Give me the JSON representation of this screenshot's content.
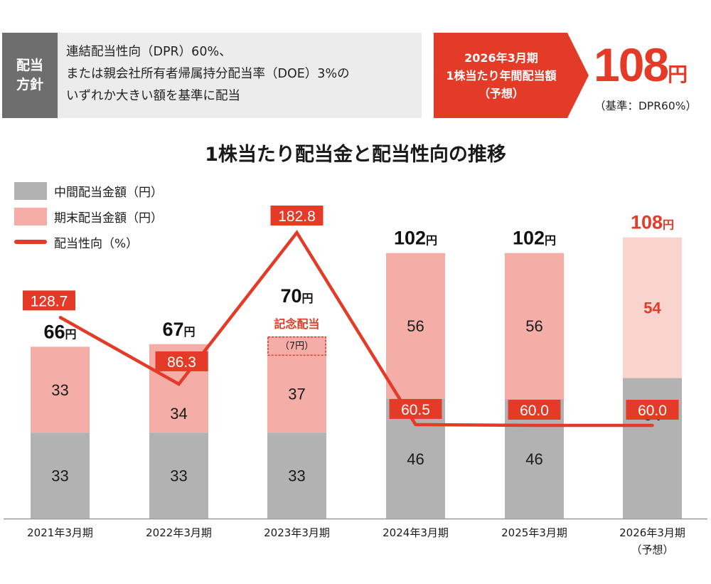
{
  "policy": {
    "label_lines": [
      "配当",
      "方針"
    ],
    "text_lines": [
      "連結配当性向（DPR）60%、",
      "または親会社所有者帰属持分配当率（DOE）3%の",
      "いずれか大きい額を基準に配当"
    ]
  },
  "forecast": {
    "lines": [
      "2026年3月期",
      "1株当たり年間配当額",
      "（予想）"
    ],
    "value": "108",
    "unit": "円",
    "basis": "（基準：DPR60%）",
    "accent_color": "#e33b27"
  },
  "chart_data": {
    "type": "bar",
    "stacked": true,
    "title": "1株当たり配当金と配当性向の推移",
    "categories": [
      "2021年3月期",
      "2022年3月期",
      "2023年3月期",
      "2024年3月期",
      "2025年3月期",
      "2026年3月期"
    ],
    "category_sublabels": [
      "",
      "",
      "",
      "",
      "",
      "（予想）"
    ],
    "legend": [
      {
        "name": "中間配当金額（円）",
        "type": "bar",
        "color": "#b2b2b2"
      },
      {
        "name": "期末配当金額（円）",
        "type": "bar",
        "color": "#f5aea7"
      },
      {
        "name": "配当性向（%）",
        "type": "line",
        "color": "#e33b27"
      }
    ],
    "legend_placement": "top-left",
    "series": [
      {
        "name": "中間配当金額（円）",
        "type": "bar",
        "values": [
          33,
          33,
          33,
          46,
          46,
          54
        ]
      },
      {
        "name": "期末配当金額（円）",
        "type": "bar",
        "values": [
          33,
          34,
          37,
          56,
          56,
          54
        ]
      },
      {
        "name": "配当性向（%）",
        "type": "line",
        "values": [
          128.7,
          86.3,
          182.8,
          60.5,
          60.0,
          60.0
        ]
      }
    ],
    "totals": [
      66,
      67,
      70,
      102,
      102,
      108
    ],
    "total_unit": "円",
    "dpr_labels": [
      "128.7",
      "86.3",
      "182.8",
      "60.5",
      "60.0",
      "60.0"
    ],
    "forecast_index": 5,
    "annotation": {
      "index": 2,
      "title": "記念配当",
      "note": "（7円）",
      "amount": 7
    },
    "ylim_yen": [
      0,
      120
    ],
    "grid": false,
    "xlabel": "",
    "ylabel": ""
  }
}
